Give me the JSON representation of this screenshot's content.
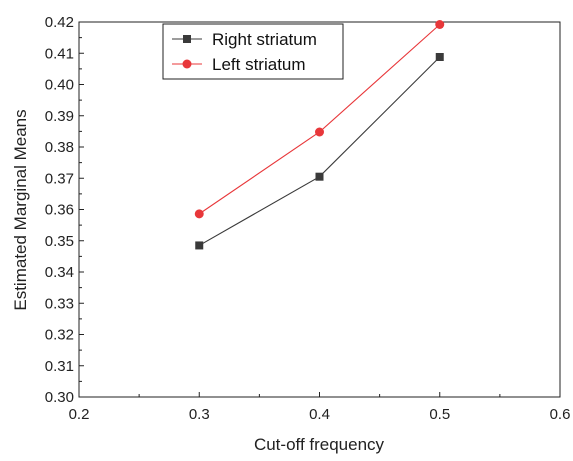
{
  "chart_data": {
    "type": "line",
    "xlabel": "Cut-off frequency",
    "ylabel": "Estimated Marginal Means",
    "xlim": [
      0.2,
      0.6
    ],
    "ylim": [
      0.3,
      0.42
    ],
    "x_ticks": [
      "0.2",
      "0.3",
      "0.4",
      "0.5",
      "0.6"
    ],
    "y_ticks": [
      "0.30",
      "0.31",
      "0.32",
      "0.33",
      "0.34",
      "0.35",
      "0.36",
      "0.37",
      "0.38",
      "0.39",
      "0.40",
      "0.41",
      "0.42"
    ],
    "grid": false,
    "legend_position": "top-left",
    "x": [
      0.3,
      0.4,
      0.5
    ],
    "series": [
      {
        "name": "Right striatum",
        "values": [
          0.3485,
          0.3705,
          0.4088
        ],
        "color": "#3a3a3a",
        "marker": "square"
      },
      {
        "name": "Left striatum",
        "values": [
          0.3586,
          0.3848,
          0.4192
        ],
        "color": "#e8373a",
        "marker": "circle"
      }
    ]
  }
}
